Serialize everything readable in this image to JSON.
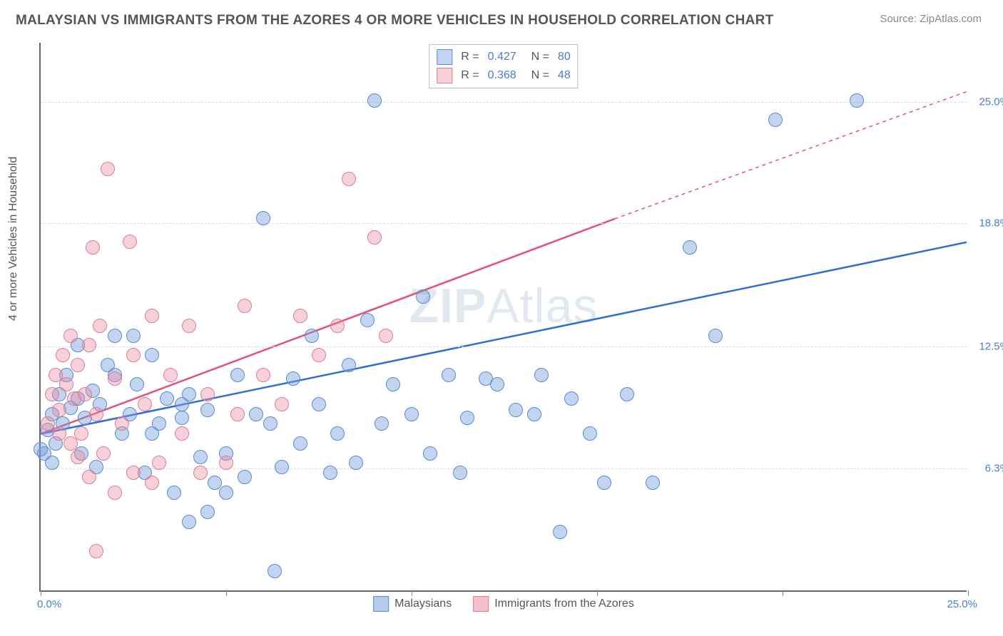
{
  "title": "MALAYSIAN VS IMMIGRANTS FROM THE AZORES 4 OR MORE VEHICLES IN HOUSEHOLD CORRELATION CHART",
  "source": "Source: ZipAtlas.com",
  "y_axis_label": "4 or more Vehicles in Household",
  "watermark_bold": "ZIP",
  "watermark_light": "Atlas",
  "chart": {
    "type": "scatter",
    "xlim": [
      0,
      25
    ],
    "ylim": [
      0,
      28
    ],
    "x_origin_label": "0.0%",
    "x_max_label": "25.0%",
    "x_tick_positions": [
      0,
      5,
      10,
      15,
      20,
      25
    ],
    "y_ticks": [
      {
        "value": 6.3,
        "label": "6.3%"
      },
      {
        "value": 12.5,
        "label": "12.5%"
      },
      {
        "value": 18.8,
        "label": "18.8%"
      },
      {
        "value": 25.0,
        "label": "25.0%"
      }
    ],
    "grid_color": "#dddddd",
    "background_color": "#ffffff",
    "series": [
      {
        "name": "Malaysians",
        "fill": "rgba(120,160,220,0.45)",
        "stroke": "#5a8cd0",
        "R": "0.427",
        "N": "80",
        "trend": {
          "x1": 0,
          "y1": 8.0,
          "x2": 25,
          "y2": 17.8,
          "color": "#2f6fd1",
          "width": 2.5,
          "dash": "none"
        },
        "marker_radius": 10,
        "points": [
          [
            0.1,
            7.0
          ],
          [
            0.2,
            8.2
          ],
          [
            0.3,
            9.0
          ],
          [
            0.4,
            7.5
          ],
          [
            0.5,
            10.0
          ],
          [
            0.6,
            8.5
          ],
          [
            0.7,
            11.0
          ],
          [
            0.8,
            9.3
          ],
          [
            1.0,
            12.5
          ],
          [
            1.1,
            7.0
          ],
          [
            1.2,
            8.8
          ],
          [
            1.4,
            10.2
          ],
          [
            1.5,
            6.3
          ],
          [
            1.6,
            9.5
          ],
          [
            1.8,
            11.5
          ],
          [
            2.0,
            13.0
          ],
          [
            2.2,
            8.0
          ],
          [
            2.4,
            9.0
          ],
          [
            2.6,
            10.5
          ],
          [
            2.8,
            6.0
          ],
          [
            3.0,
            12.0
          ],
          [
            3.2,
            8.5
          ],
          [
            3.4,
            9.8
          ],
          [
            3.6,
            5.0
          ],
          [
            3.8,
            8.8
          ],
          [
            4.0,
            10.0
          ],
          [
            4.3,
            6.8
          ],
          [
            4.5,
            9.2
          ],
          [
            4.7,
            5.5
          ],
          [
            5.0,
            7.0
          ],
          [
            5.3,
            11.0
          ],
          [
            5.5,
            5.8
          ],
          [
            5.8,
            9.0
          ],
          [
            6.0,
            19.0
          ],
          [
            6.2,
            8.5
          ],
          [
            6.5,
            6.3
          ],
          [
            6.8,
            10.8
          ],
          [
            7.0,
            7.5
          ],
          [
            7.3,
            13.0
          ],
          [
            7.5,
            9.5
          ],
          [
            7.8,
            6.0
          ],
          [
            8.0,
            8.0
          ],
          [
            8.3,
            11.5
          ],
          [
            8.5,
            6.5
          ],
          [
            9.0,
            25.0
          ],
          [
            8.8,
            13.8
          ],
          [
            9.2,
            8.5
          ],
          [
            9.5,
            10.5
          ],
          [
            10.0,
            9.0
          ],
          [
            10.3,
            15.0
          ],
          [
            10.5,
            7.0
          ],
          [
            11.0,
            11.0
          ],
          [
            11.3,
            6.0
          ],
          [
            11.5,
            8.8
          ],
          [
            12.0,
            10.8
          ],
          [
            12.3,
            10.5
          ],
          [
            12.8,
            9.2
          ],
          [
            13.3,
            9.0
          ],
          [
            13.5,
            11.0
          ],
          [
            14.0,
            3.0
          ],
          [
            14.3,
            9.8
          ],
          [
            14.8,
            8.0
          ],
          [
            15.2,
            5.5
          ],
          [
            15.8,
            10.0
          ],
          [
            16.5,
            5.5
          ],
          [
            17.5,
            17.5
          ],
          [
            18.2,
            13.0
          ],
          [
            19.8,
            24.0
          ],
          [
            22.0,
            25.0
          ],
          [
            0.0,
            7.2
          ],
          [
            0.3,
            6.5
          ],
          [
            1.0,
            9.8
          ],
          [
            2.0,
            11.0
          ],
          [
            3.0,
            8.0
          ],
          [
            4.0,
            3.5
          ],
          [
            5.0,
            5.0
          ],
          [
            6.3,
            1.0
          ],
          [
            4.5,
            4.0
          ],
          [
            3.8,
            9.5
          ],
          [
            2.5,
            13.0
          ]
        ]
      },
      {
        "name": "Immigrants from the Azores",
        "fill": "rgba(235,140,160,0.40)",
        "stroke": "#e07a95",
        "R": "0.368",
        "N": "48",
        "trend_solid": {
          "x1": 0,
          "y1": 8.0,
          "x2": 15.5,
          "y2": 19.0,
          "color": "#e84f78",
          "width": 2.5
        },
        "trend_dash": {
          "x1": 15.5,
          "y1": 19.0,
          "x2": 25,
          "y2": 25.5,
          "color": "#e84f78",
          "width": 1.5,
          "dash": "5,5"
        },
        "marker_radius": 10,
        "points": [
          [
            0.2,
            8.5
          ],
          [
            0.3,
            10.0
          ],
          [
            0.4,
            11.0
          ],
          [
            0.5,
            9.2
          ],
          [
            0.6,
            12.0
          ],
          [
            0.7,
            10.5
          ],
          [
            0.8,
            13.0
          ],
          [
            0.9,
            9.8
          ],
          [
            1.0,
            11.5
          ],
          [
            1.1,
            8.0
          ],
          [
            1.2,
            10.0
          ],
          [
            1.3,
            12.5
          ],
          [
            1.4,
            17.5
          ],
          [
            1.5,
            9.0
          ],
          [
            1.6,
            13.5
          ],
          [
            1.8,
            21.5
          ],
          [
            2.0,
            10.8
          ],
          [
            2.2,
            8.5
          ],
          [
            2.4,
            17.8
          ],
          [
            2.5,
            12.0
          ],
          [
            2.8,
            9.5
          ],
          [
            3.0,
            14.0
          ],
          [
            3.2,
            6.5
          ],
          [
            3.5,
            11.0
          ],
          [
            3.8,
            8.0
          ],
          [
            4.0,
            13.5
          ],
          [
            4.3,
            6.0
          ],
          [
            4.5,
            10.0
          ],
          [
            5.0,
            6.5
          ],
          [
            5.3,
            9.0
          ],
          [
            5.5,
            14.5
          ],
          [
            6.0,
            11.0
          ],
          [
            6.5,
            9.5
          ],
          [
            7.0,
            14.0
          ],
          [
            7.5,
            12.0
          ],
          [
            8.0,
            13.5
          ],
          [
            8.3,
            21.0
          ],
          [
            9.0,
            18.0
          ],
          [
            9.3,
            13.0
          ],
          [
            1.0,
            6.8
          ],
          [
            1.3,
            5.8
          ],
          [
            1.7,
            7.0
          ],
          [
            2.0,
            5.0
          ],
          [
            2.5,
            6.0
          ],
          [
            3.0,
            5.5
          ],
          [
            1.5,
            2.0
          ],
          [
            0.5,
            8.0
          ],
          [
            0.8,
            7.5
          ]
        ]
      }
    ]
  },
  "legend_bottom": [
    {
      "label": "Malaysians",
      "fill": "rgba(120,160,220,0.55)",
      "stroke": "#5a8cd0"
    },
    {
      "label": "Immigrants from the Azores",
      "fill": "rgba(235,140,160,0.55)",
      "stroke": "#e07a95"
    }
  ]
}
